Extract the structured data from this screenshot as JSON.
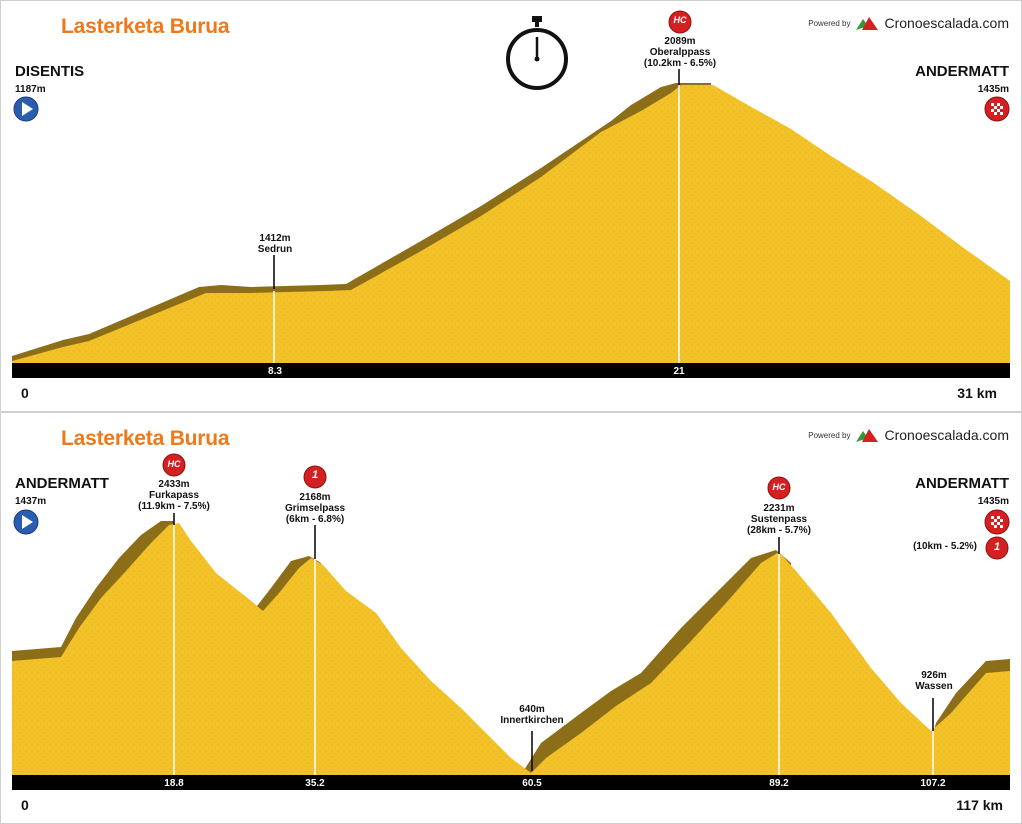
{
  "race_title": "Lasterketa Burua",
  "powered_by": "Powered by",
  "brand": "Cronoescalada.com",
  "colors": {
    "title": "#f07818",
    "fill": "#f2c228",
    "edge": "#8d6e18",
    "bar": "#000000",
    "hc": "#d42020",
    "start": "#2a5db0"
  },
  "stages": [
    {
      "start_name": "DISENTIS",
      "start_alt": "1187m",
      "finish_name": "ANDERMATT",
      "finish_alt": "1435m",
      "km_start": "0",
      "km_end": "31 km",
      "timer_icon": "stopwatch-icon",
      "summits": [
        {
          "alt": "1412m",
          "name": "Sedrun",
          "extra": "",
          "km": "8.3",
          "cat": ""
        },
        {
          "alt": "2089m",
          "name": "Oberalppass",
          "extra": "(10.2km - 6.5%)",
          "km": "21",
          "cat": "HC"
        }
      ]
    },
    {
      "start_name": "ANDERMATT",
      "start_alt": "1437m",
      "finish_name": "ANDERMATT",
      "finish_alt": "1435m",
      "finish_climb": "(10km - 5.2%)",
      "finish_cat": "1",
      "km_start": "0",
      "km_end": "117 km",
      "summits": [
        {
          "alt": "2433m",
          "name": "Furkapass",
          "extra": "(11.9km - 7.5%)",
          "km": "18.8",
          "cat": "HC"
        },
        {
          "alt": "2168m",
          "name": "Grimselpass",
          "extra": "(6km - 6.8%)",
          "km": "35.2",
          "cat": "1"
        },
        {
          "alt": "640m",
          "name": "Innertkirchen",
          "extra": "",
          "km": "60.5",
          "cat": ""
        },
        {
          "alt": "2231m",
          "name": "Sustenpass",
          "extra": "(28km - 5.7%)",
          "km": "89.2",
          "cat": "HC"
        },
        {
          "alt": "926m",
          "name": "Wassen",
          "extra": "",
          "km": "107.2",
          "cat": ""
        }
      ]
    }
  ]
}
